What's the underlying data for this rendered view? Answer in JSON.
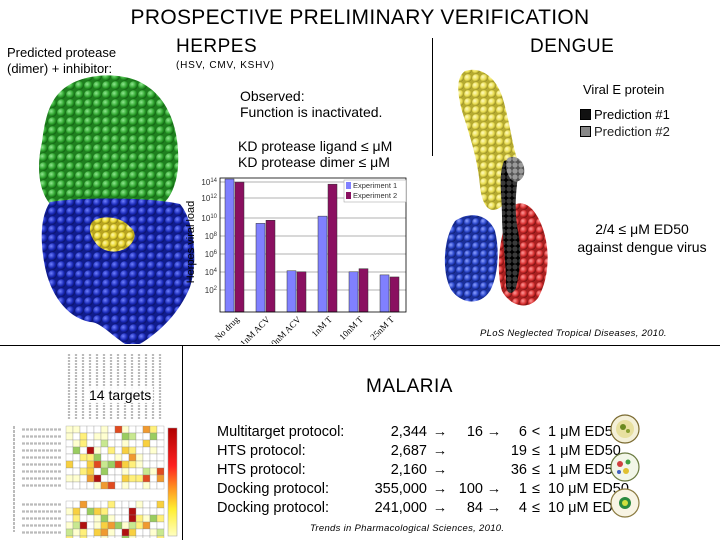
{
  "slide": {
    "title": "PROSPECTIVE PRELIMINARY VERIFICATION"
  },
  "herpes": {
    "heading": "HERPES",
    "subheading": "(HSV, CMV, KSHV)",
    "structure_label": "Predicted protease (dimer) + inhibitor:",
    "observed": "Observed:",
    "observed_detail": "Function is inactivated.",
    "kd_ligand": "KD protease ligand ≤ μM",
    "kd_dimer": "KD protease dimer ≤ μM",
    "protein_colors": {
      "top": "#2ea32e",
      "bottom": "#1a2ab8",
      "ligand": "#e8d630"
    }
  },
  "dengue": {
    "heading": "DENGUE",
    "protein_label": "Viral E protein",
    "legend": [
      {
        "label": "Prediction #1",
        "color": "#111111"
      },
      {
        "label": "Prediction #2",
        "color": "#888888"
      }
    ],
    "result_line1": "2/4 ≤ μM ED50",
    "result_line2": "against dengue virus",
    "citation": "PLoS Neglected Tropical Diseases, 2010.",
    "protein_colors": {
      "main": "#e8dc50",
      "left": "#2844c8",
      "right": "#d83030",
      "pred1": "#111111",
      "pred2": "#777777"
    }
  },
  "chart_data": {
    "type": "bar",
    "ylabel": "Herpes viral load",
    "yscale": "log",
    "ylim_exp": [
      1,
      14
    ],
    "ytick_labels": [
      "10^14",
      "10^12",
      "10^10",
      "10^8",
      "10^6",
      "10^4",
      "10^2"
    ],
    "categories": [
      "No drug",
      "1nM ACV",
      "10nM ACV",
      "1nM T",
      "10nM T",
      "25nM T"
    ],
    "series": [
      {
        "name": "Experiment 1",
        "color": "#8080ff",
        "values_exp": [
          13.9,
          9.6,
          5.0,
          10.3,
          4.9,
          4.6
        ]
      },
      {
        "name": "Experiment 2",
        "color": "#8a1060",
        "values_exp": [
          13.6,
          9.9,
          4.9,
          13.4,
          5.2,
          4.4
        ]
      }
    ],
    "legend": [
      "Experiment 1",
      "Experiment 2"
    ]
  },
  "malaria": {
    "heading": "MALARIA",
    "targets_label": "14 targets",
    "protocols": [
      {
        "name": "Multitarget protocol:",
        "start": "2,344",
        "arrow1": "→",
        "mid": "16",
        "arrow2": "→",
        "end": "6",
        "cmp": "<",
        "result": "1 μM ED50"
      },
      {
        "name": "HTS protocol:",
        "start": "2,687",
        "arrow1": "→",
        "mid": "",
        "arrow2": "",
        "end": "19",
        "cmp": "≤",
        "result": "1 μM ED50"
      },
      {
        "name": "HTS protocol:",
        "start": "2,160",
        "arrow1": "→",
        "mid": "",
        "arrow2": "",
        "end": "36",
        "cmp": "≤",
        "result": "1 μM ED50"
      },
      {
        "name": "Docking protocol:",
        "start": "355,000",
        "arrow1": "→",
        "mid": "100",
        "arrow2": "→",
        "end": "1",
        "cmp": "≤",
        "result": "10 μM ED50"
      },
      {
        "name": "Docking protocol:",
        "start": "241,000",
        "arrow1": "→",
        "mid": "84",
        "arrow2": "→",
        "end": "4",
        "cmp": "≤",
        "result": "10 μM ED50"
      }
    ],
    "citation": "Trends in Pharmacological Sciences, 2010."
  }
}
